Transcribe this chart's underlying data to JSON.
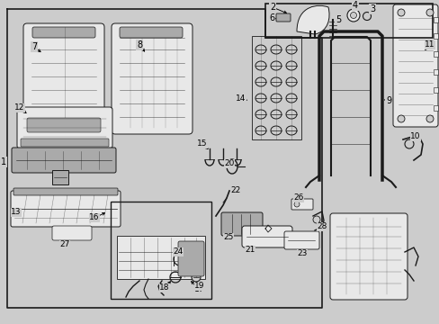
{
  "bg_color": "#cccccc",
  "line_color": "#1a1a1a",
  "fill_light": "#e8e8e8",
  "fill_white": "#f5f5f5",
  "fill_dark": "#aaaaaa",
  "lw_main": 1.0,
  "lw_comp": 0.7,
  "fig_w": 4.89,
  "fig_h": 3.6,
  "dpi": 100
}
